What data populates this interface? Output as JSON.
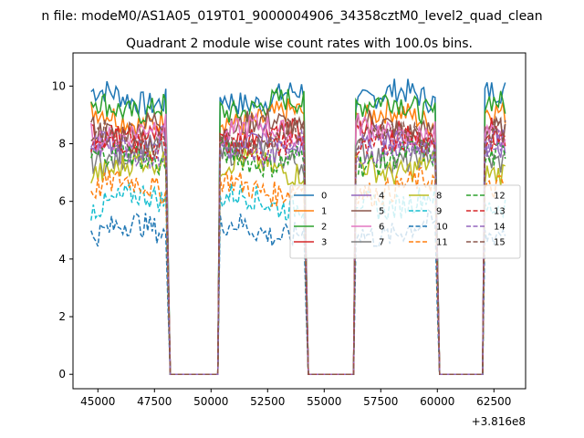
{
  "figure": {
    "suptitle": "n file: modeM0/AS1A05_019T01_9000004906_34358cztM0_level2_quad_clean"
  },
  "chart_data": {
    "type": "line",
    "title": "Quadrant 2 module wise count rates with 100.0s bins.",
    "xlabel": "",
    "ylabel": "",
    "x_offset_label": "+3.816e8",
    "xlim": [
      43900,
      63900
    ],
    "ylim": [
      -0.5,
      11.15
    ],
    "x_ticks": [
      45000,
      47500,
      50000,
      52500,
      55000,
      57500,
      60000,
      62500
    ],
    "x_tick_labels": [
      "45000",
      "47500",
      "50000",
      "52500",
      "55000",
      "57500",
      "60000",
      "62500"
    ],
    "y_ticks": [
      0,
      2,
      4,
      6,
      8,
      10
    ],
    "y_tick_labels": [
      "0",
      "2",
      "4",
      "6",
      "8",
      "10"
    ],
    "grid": false,
    "legend": {
      "placement": "center-right",
      "columns": 4
    },
    "segments": [
      {
        "on_start": 44700,
        "on_end": 48000,
        "off_end": 50400
      },
      {
        "on_start": 50400,
        "on_end": 54100,
        "off_end": 56400
      },
      {
        "on_start": 56400,
        "on_end": 59900,
        "off_end": 62100
      },
      {
        "on_start": 62100,
        "on_end": 63000,
        "off_end": null
      }
    ],
    "off_level": 0,
    "series": [
      {
        "name": "0",
        "color": "#1f77b4",
        "dash": "solid",
        "level": 9.6
      },
      {
        "name": "1",
        "color": "#ff7f0e",
        "dash": "solid",
        "level": 8.9
      },
      {
        "name": "2",
        "color": "#2ca02c",
        "dash": "solid",
        "level": 9.3
      },
      {
        "name": "3",
        "color": "#d62728",
        "dash": "solid",
        "level": 8.3
      },
      {
        "name": "4",
        "color": "#9467bd",
        "dash": "solid",
        "level": 8.0
      },
      {
        "name": "5",
        "color": "#8c564b",
        "dash": "solid",
        "level": 8.6
      },
      {
        "name": "6",
        "color": "#e377c2",
        "dash": "solid",
        "level": 8.4
      },
      {
        "name": "7",
        "color": "#7f7f7f",
        "dash": "solid",
        "level": 7.6
      },
      {
        "name": "8",
        "color": "#bcbd22",
        "dash": "solid",
        "level": 7.2
      },
      {
        "name": "9",
        "color": "#17becf",
        "dash": "dashed",
        "level": 6.0
      },
      {
        "name": "10",
        "color": "#1f77b4",
        "dash": "dashed",
        "level": 5.0
      },
      {
        "name": "11",
        "color": "#ff7f0e",
        "dash": "dashed",
        "level": 6.5
      },
      {
        "name": "12",
        "color": "#2ca02c",
        "dash": "dashed",
        "level": 7.5
      },
      {
        "name": "13",
        "color": "#d62728",
        "dash": "dashed",
        "level": 8.0
      },
      {
        "name": "14",
        "color": "#9467bd",
        "dash": "dashed",
        "level": 7.8
      },
      {
        "name": "15",
        "color": "#8c564b",
        "dash": "dashed",
        "level": 8.2
      }
    ]
  }
}
